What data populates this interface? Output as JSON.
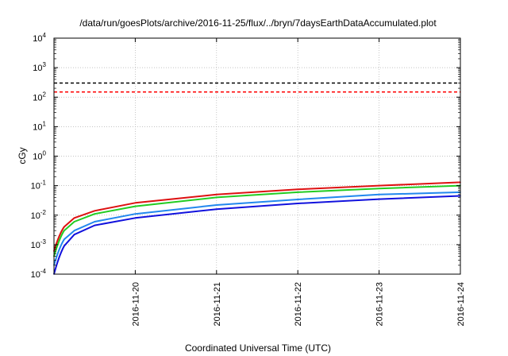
{
  "chart_data": {
    "type": "line",
    "title": "/data/run/goesPlots/archive/2016-11-25/flux/../bryn/7daysEarthDataAccumulated.plot",
    "xlabel": "Coordinated Universal Time (UTC)",
    "ylabel": "cGy",
    "y_scale": "log",
    "ylim": [
      0.0001,
      10000
    ],
    "xlim": [
      "2016-11-19T00:00",
      "2016-11-24T00:00"
    ],
    "y_tick_labels": [
      {
        "value": 0.0001,
        "base": "10",
        "exp": "-4"
      },
      {
        "value": 0.001,
        "base": "10",
        "exp": "-3"
      },
      {
        "value": 0.01,
        "base": "10",
        "exp": "-2"
      },
      {
        "value": 0.1,
        "base": "10",
        "exp": "-1"
      },
      {
        "value": 1,
        "base": "10",
        "exp": "0"
      },
      {
        "value": 10,
        "base": "10",
        "exp": "1"
      },
      {
        "value": 100,
        "base": "10",
        "exp": "2"
      },
      {
        "value": 1000,
        "base": "10",
        "exp": "3"
      },
      {
        "value": 10000,
        "base": "10",
        "exp": "4"
      }
    ],
    "x_tick_labels": [
      "2016-11-20",
      "2016-11-21",
      "2016-11-22",
      "2016-11-23",
      "2016-11-24"
    ],
    "grid": true,
    "reference_lines": [
      {
        "y": 300,
        "color": "#000000",
        "style": "dashed"
      },
      {
        "y": 150,
        "color": "#ff0000",
        "style": "dashed"
      }
    ],
    "series": [
      {
        "color": "#dd1111",
        "x": [
          "2016-11-19T00:00",
          "2016-11-19T03:00",
          "2016-11-19T06:00",
          "2016-11-19T12:00",
          "2016-11-20T00:00",
          "2016-11-21T00:00",
          "2016-11-22T00:00",
          "2016-11-23T00:00",
          "2016-11-24T00:00"
        ],
        "values": [
          0.0006,
          0.004,
          0.008,
          0.014,
          0.026,
          0.05,
          0.075,
          0.1,
          0.13
        ]
      },
      {
        "color": "#22cc22",
        "x": [
          "2016-11-19T00:00",
          "2016-11-19T03:00",
          "2016-11-19T06:00",
          "2016-11-19T12:00",
          "2016-11-20T00:00",
          "2016-11-21T00:00",
          "2016-11-22T00:00",
          "2016-11-23T00:00",
          "2016-11-24T00:00"
        ],
        "values": [
          0.0004,
          0.003,
          0.006,
          0.011,
          0.02,
          0.04,
          0.06,
          0.08,
          0.1
        ]
      },
      {
        "color": "#2288ee",
        "x": [
          "2016-11-19T00:00",
          "2016-11-19T03:00",
          "2016-11-19T06:00",
          "2016-11-19T12:00",
          "2016-11-20T00:00",
          "2016-11-21T00:00",
          "2016-11-22T00:00",
          "2016-11-23T00:00",
          "2016-11-24T00:00"
        ],
        "values": [
          0.0002,
          0.0015,
          0.003,
          0.006,
          0.011,
          0.022,
          0.034,
          0.05,
          0.06
        ]
      },
      {
        "color": "#1111dd",
        "x": [
          "2016-11-19T00:00",
          "2016-11-19T03:00",
          "2016-11-19T06:00",
          "2016-11-19T12:00",
          "2016-11-20T00:00",
          "2016-11-21T00:00",
          "2016-11-22T00:00",
          "2016-11-23T00:00",
          "2016-11-24T00:00"
        ],
        "values": [
          0.0001,
          0.0009,
          0.0022,
          0.0045,
          0.008,
          0.016,
          0.025,
          0.035,
          0.045
        ]
      }
    ]
  }
}
